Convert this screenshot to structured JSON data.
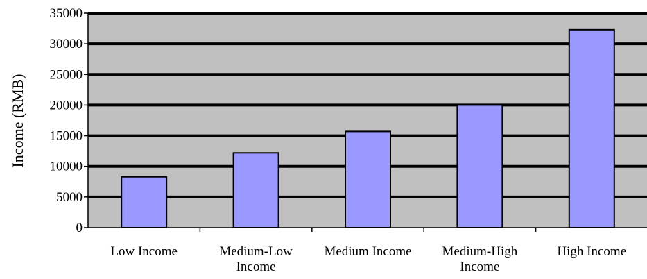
{
  "chart_data": {
    "type": "bar",
    "categories": [
      [
        "Low Income"
      ],
      [
        "Medium-Low",
        "Income"
      ],
      [
        "Medium Income"
      ],
      [
        "Medium-High",
        "Income"
      ],
      [
        "High Income"
      ]
    ],
    "values": [
      8300,
      12200,
      15700,
      20000,
      32300
    ],
    "ylabel": "Income (RMB)",
    "ylim": [
      0,
      35000
    ],
    "yticks": [
      0,
      5000,
      10000,
      15000,
      20000,
      25000,
      30000,
      35000
    ],
    "grid": true,
    "colors": {
      "plot_background": "#c0c0c0",
      "bar_fill": "#9999ff",
      "bar_stroke": "#000000",
      "gridline": "#000000"
    }
  }
}
